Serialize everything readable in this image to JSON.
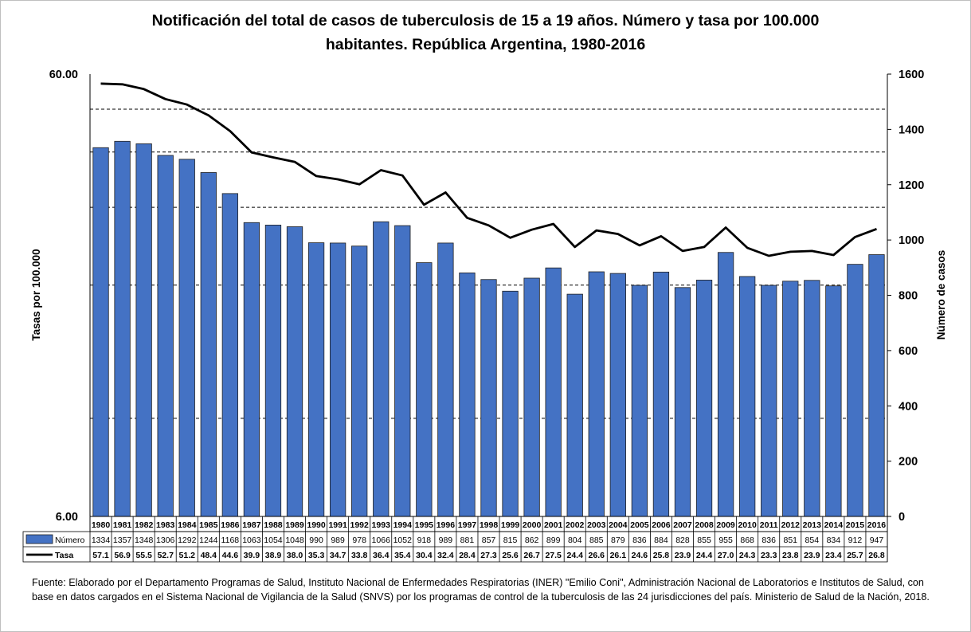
{
  "title_line1": "Notificación del total de casos de tuberculosis de 15 a 19 años. Número y tasa por 100.000",
  "title_line2": "habitantes. República Argentina, 1980-2016",
  "source": "Fuente: Elaborado por el Departamento Programas de Salud, Instituto Nacional de Enfermedades Respiratorias (INER) \"Emilio Coni\", Administración Nacional de Laboratorios e Institutos de Salud, con base en datos cargados en el Sistema Nacional de Vigilancia de la Salud (SNVS) por los programas de control de la tuberculosis de las 24 jurisdicciones del país. Ministerio de Salud de la Nación, 2018.",
  "colors": {
    "bar": "#4472c4",
    "bar_border": "#1f1f1f",
    "line": "#000000",
    "grid": "#000000"
  },
  "chart_data": {
    "type": "bar+line",
    "categories": [
      "1980",
      "1981",
      "1982",
      "1983",
      "1984",
      "1985",
      "1986",
      "1987",
      "1988",
      "1989",
      "1990",
      "1991",
      "1992",
      "1993",
      "1994",
      "1995",
      "1996",
      "1997",
      "1998",
      "1999",
      "2000",
      "2001",
      "2002",
      "2003",
      "2004",
      "2005",
      "2006",
      "2007",
      "2008",
      "2009",
      "2010",
      "2011",
      "2012",
      "2013",
      "2014",
      "2015",
      "2016"
    ],
    "series": [
      {
        "name": "Número",
        "type": "bar",
        "axis": "right",
        "values": [
          1334,
          1357,
          1348,
          1306,
          1292,
          1244,
          1168,
          1063,
          1054,
          1048,
          990,
          989,
          978,
          1066,
          1052,
          918,
          989,
          881,
          857,
          815,
          862,
          899,
          804,
          885,
          879,
          836,
          884,
          828,
          855,
          955,
          868,
          836,
          851,
          854,
          834,
          912,
          947
        ]
      },
      {
        "name": "Tasa",
        "type": "line",
        "axis": "left",
        "values": [
          57.1,
          56.9,
          55.5,
          52.7,
          51.2,
          48.4,
          44.6,
          39.9,
          38.9,
          38.0,
          35.3,
          34.7,
          33.8,
          36.4,
          35.4,
          30.4,
          32.4,
          28.4,
          27.3,
          25.6,
          26.7,
          27.5,
          24.4,
          26.6,
          26.1,
          24.6,
          25.8,
          23.9,
          24.4,
          27.0,
          24.3,
          23.3,
          23.8,
          23.9,
          23.4,
          25.7,
          26.8
        ]
      }
    ],
    "y_left": {
      "label": "Tasas por 100.000",
      "scale": "log",
      "range": [
        6,
        60
      ],
      "ticks": [
        "60.00",
        "6.00"
      ]
    },
    "y_right": {
      "label": "Número de casos",
      "range": [
        0,
        1600
      ],
      "ticks": [
        0,
        200,
        400,
        600,
        800,
        1000,
        1200,
        1400,
        1600
      ]
    },
    "grid": "dashed horizontal",
    "legend": "data table below plot"
  }
}
